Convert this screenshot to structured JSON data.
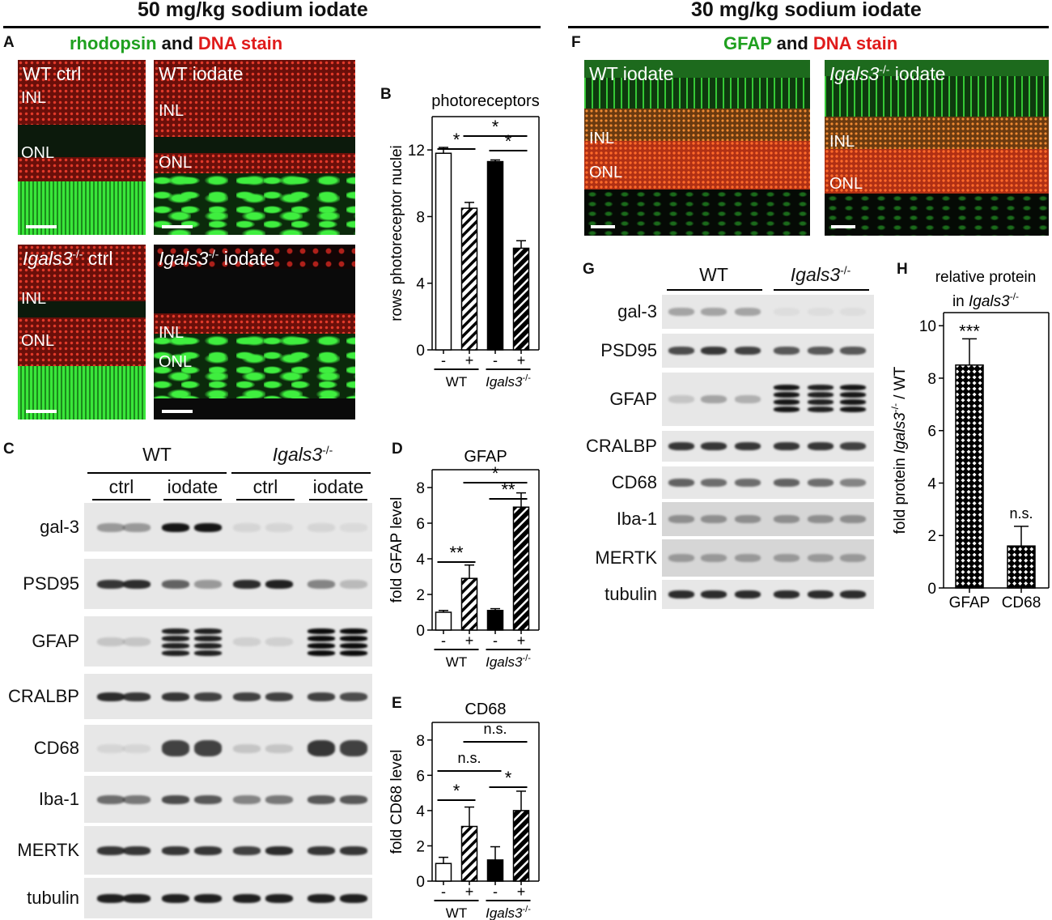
{
  "headers": {
    "left": "50 mg/kg sodium iodate",
    "right": "30 mg/kg sodium iodate"
  },
  "panel_letters": {
    "A": "A",
    "B": "B",
    "C": "C",
    "D": "D",
    "E": "E",
    "F": "F",
    "G": "G",
    "H": "H"
  },
  "panelA": {
    "title_green": "rhodopsin",
    "title_and": "and",
    "title_red": "DNA stain",
    "images": [
      {
        "label_italic": "",
        "label": "WT ctrl",
        "layers": [
          "INL",
          "ONL"
        ]
      },
      {
        "label_italic": "",
        "label": "WT iodate",
        "layers": [
          "INL",
          "ONL"
        ]
      },
      {
        "label_italic": "Igals3",
        "sup": "-/-",
        "label": " ctrl",
        "layers": [
          "INL",
          "ONL"
        ]
      },
      {
        "label_italic": "Igals3",
        "sup": "-/-",
        "label": " iodate",
        "layers": [
          "INL",
          "ONL"
        ]
      }
    ]
  },
  "panelF": {
    "title_green": "GFAP",
    "title_and": "and",
    "title_red": "DNA stain",
    "images": [
      {
        "label_italic": "",
        "label": "WT iodate",
        "layers": [
          "INL",
          "ONL"
        ]
      },
      {
        "label_italic": "Igals3",
        "sup": "-/-",
        "label": " iodate",
        "layers": [
          "INL",
          "ONL"
        ]
      }
    ]
  },
  "panelC": {
    "groups": [
      {
        "label": "WT",
        "italic": false
      },
      {
        "label": "Igals3",
        "italic": true,
        "sup": "-/-"
      }
    ],
    "conditions": [
      "ctrl",
      "iodate",
      "ctrl",
      "iodate"
    ],
    "blots": [
      "gal-3",
      "PSD95",
      "GFAP",
      "CRALBP",
      "CD68",
      "Iba-1",
      "MERTK",
      "tubulin"
    ]
  },
  "panelG": {
    "groups": [
      {
        "label": "WT",
        "italic": false
      },
      {
        "label": "Igals3",
        "italic": true,
        "sup": "-/-"
      }
    ],
    "blots": [
      "gal-3",
      "PSD95",
      "GFAP",
      "CRALBP",
      "CD68",
      "Iba-1",
      "MERTK",
      "tubulin"
    ]
  },
  "chart_data": [
    {
      "id": "B",
      "type": "bar",
      "title": "photoreceptors",
      "ylabel": "rows photoreceptor nuclei",
      "ylim": [
        0,
        14
      ],
      "yticks": [
        0,
        4,
        8,
        12
      ],
      "categories": [
        "-",
        "+",
        "-",
        "+"
      ],
      "groups": [
        {
          "label": "WT",
          "italic": false
        },
        {
          "label": "Igals3",
          "italic": true,
          "sup": "-/-"
        }
      ],
      "values": [
        11.8,
        8.5,
        11.3,
        6.1
      ],
      "errors": [
        0.35,
        0.35,
        0.1,
        0.45
      ],
      "fills": [
        "white",
        "hatch",
        "black",
        "hatchdark"
      ],
      "annotations": [
        {
          "from": 0,
          "to": 1,
          "text": "*"
        },
        {
          "from": 1,
          "to": 3,
          "text": "*"
        },
        {
          "from": 2,
          "to": 3,
          "text": "*"
        }
      ]
    },
    {
      "id": "D",
      "type": "bar",
      "title": "GFAP",
      "ylabel": "fold GFAP level",
      "ylim": [
        0,
        9
      ],
      "yticks": [
        0,
        2,
        4,
        6,
        8
      ],
      "categories": [
        "-",
        "+",
        "-",
        "+"
      ],
      "groups": [
        {
          "label": "WT",
          "italic": false
        },
        {
          "label": "Igals3",
          "italic": true,
          "sup": "-/-"
        }
      ],
      "values": [
        1.0,
        2.9,
        1.1,
        6.9
      ],
      "errors": [
        0.1,
        0.75,
        0.1,
        0.8
      ],
      "fills": [
        "white",
        "hatch",
        "black",
        "hatchdark"
      ],
      "annotations": [
        {
          "from": 0,
          "to": 1,
          "text": "**"
        },
        {
          "from": 1,
          "to": 3,
          "text": "*"
        },
        {
          "from": 2,
          "to": 3,
          "text": "**"
        }
      ]
    },
    {
      "id": "E",
      "type": "bar",
      "title": "CD68",
      "ylabel": "fold CD68 level",
      "ylim": [
        0,
        9
      ],
      "yticks": [
        0,
        2,
        4,
        6,
        8
      ],
      "categories": [
        "-",
        "+",
        "-",
        "+"
      ],
      "groups": [
        {
          "label": "WT",
          "italic": false
        },
        {
          "label": "Igals3",
          "italic": true,
          "sup": "-/-"
        }
      ],
      "values": [
        1.0,
        3.1,
        1.2,
        4.0
      ],
      "errors": [
        0.35,
        1.1,
        0.75,
        1.1
      ],
      "fills": [
        "white",
        "hatch",
        "black",
        "hatchdark"
      ],
      "annotations": [
        {
          "from": 0,
          "to": 1,
          "text": "*"
        },
        {
          "from": 0,
          "to": 2,
          "text": "n.s."
        },
        {
          "from": 1,
          "to": 3,
          "text": "n.s."
        },
        {
          "from": 2,
          "to": 3,
          "text": "*"
        }
      ]
    },
    {
      "id": "H",
      "type": "bar",
      "title_line1": "relative protein",
      "title_line2_pre": "in ",
      "title_line2_italic": "Igals3",
      "title_sup": "-/-",
      "ylabel_pre": "fold protein ",
      "ylabel_italic": "Igals3",
      "ylabel_sup": "-/-",
      "ylabel_post": " / WT",
      "ylim": [
        0,
        10.5
      ],
      "yticks": [
        0,
        2,
        4,
        6,
        8,
        10
      ],
      "categories": [
        "GFAP",
        "CD68"
      ],
      "values": [
        8.5,
        1.6
      ],
      "errors": [
        1.0,
        0.75
      ],
      "fills": [
        "checker",
        "checker"
      ],
      "annotations": [
        {
          "bar": 0,
          "text": "***"
        },
        {
          "bar": 1,
          "text": "n.s."
        }
      ]
    }
  ]
}
